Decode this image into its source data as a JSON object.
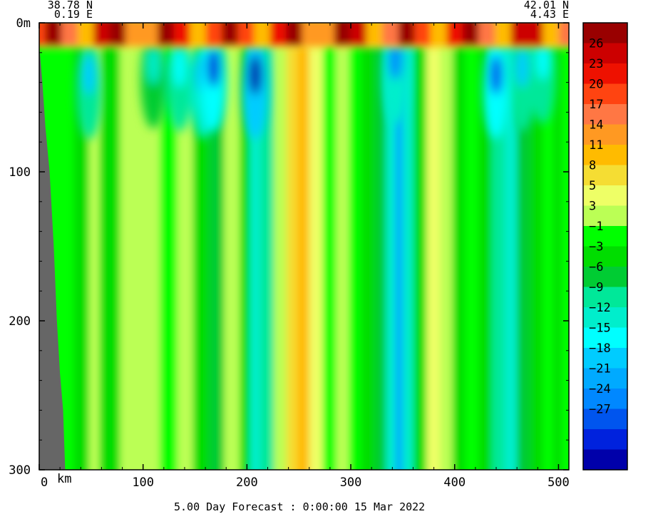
{
  "section": {
    "start": {
      "lat": "38.78 N",
      "lon": "0.19 E"
    },
    "end": {
      "lat": "42.01 N",
      "lon": "4.43 E"
    }
  },
  "footer": "5.00 Day Forecast :  0:00:00  15 Mar 2022",
  "colors": {
    "land": "#666666",
    "scale": [
      "#0000aa",
      "#0022dd",
      "#0055ee",
      "#0088ff",
      "#00aaff",
      "#00ccff",
      "#00ffff",
      "#00eecc",
      "#00e899",
      "#00cc33",
      "#00dd00",
      "#00ff00",
      "#bbff55",
      "#eeff66",
      "#f5dd33",
      "#ffbb00",
      "#ff9922",
      "#ff7744",
      "#ff4411",
      "#ee1100",
      "#cc0000",
      "#990000"
    ]
  },
  "chart_data": {
    "type": "heatmap",
    "title": "",
    "xlabel": "km",
    "ylabel": "m",
    "xlim": [
      0,
      510
    ],
    "ylim": [
      0,
      300
    ],
    "y_inverted": true,
    "x_ticks": [
      {
        "value": 0,
        "label": "0"
      },
      {
        "value": 100,
        "label": "100"
      },
      {
        "value": 200,
        "label": "200"
      },
      {
        "value": 300,
        "label": "300"
      },
      {
        "value": 400,
        "label": "400"
      },
      {
        "value": 500,
        "label": "500"
      }
    ],
    "y_ticks": [
      {
        "value": 0,
        "label": "0m"
      },
      {
        "value": 100,
        "label": "100"
      },
      {
        "value": 200,
        "label": "200"
      },
      {
        "value": 300,
        "label": "300"
      }
    ],
    "colorbar": {
      "labels": [
        "26",
        "23",
        "20",
        "17",
        "14",
        "11",
        "8",
        "5",
        "3",
        "-1",
        "-3",
        "-6",
        "-9",
        "-12",
        "-15",
        "-18",
        "-21",
        "-24",
        "-27"
      ]
    },
    "bands": [
      {
        "x": 0,
        "value": 2
      },
      {
        "x": 20,
        "value": 0
      },
      {
        "x": 35,
        "value": -2
      },
      {
        "x": 50,
        "value": 4
      },
      {
        "x": 60,
        "value": -1
      },
      {
        "x": 80,
        "value": 3
      },
      {
        "x": 100,
        "value": 4
      },
      {
        "x": 118,
        "value": 1
      },
      {
        "x": 135,
        "value": 3
      },
      {
        "x": 150,
        "value": -2
      },
      {
        "x": 165,
        "value": -3
      },
      {
        "x": 180,
        "value": 5
      },
      {
        "x": 195,
        "value": -2
      },
      {
        "x": 205,
        "value": -9
      },
      {
        "x": 215,
        "value": -6
      },
      {
        "x": 228,
        "value": 3
      },
      {
        "x": 240,
        "value": 9
      },
      {
        "x": 250,
        "value": 12
      },
      {
        "x": 262,
        "value": 7
      },
      {
        "x": 275,
        "value": 1
      },
      {
        "x": 288,
        "value": 5
      },
      {
        "x": 300,
        "value": 2
      },
      {
        "x": 312,
        "value": -2
      },
      {
        "x": 325,
        "value": -4
      },
      {
        "x": 336,
        "value": -10
      },
      {
        "x": 345,
        "value": -17
      },
      {
        "x": 352,
        "value": -8
      },
      {
        "x": 362,
        "value": -1
      },
      {
        "x": 375,
        "value": 6
      },
      {
        "x": 388,
        "value": 3
      },
      {
        "x": 400,
        "value": -2
      },
      {
        "x": 412,
        "value": 1
      },
      {
        "x": 425,
        "value": -1
      },
      {
        "x": 438,
        "value": -6
      },
      {
        "x": 450,
        "value": -9
      },
      {
        "x": 462,
        "value": -4
      },
      {
        "x": 475,
        "value": -1
      },
      {
        "x": 487,
        "value": 2
      },
      {
        "x": 497,
        "value": -1
      },
      {
        "x": 505,
        "value": 1
      }
    ],
    "upper_anomalies": [
      {
        "x": 48,
        "depth": 35,
        "value": -15
      },
      {
        "x": 110,
        "depth": 28,
        "value": -9
      },
      {
        "x": 135,
        "depth": 30,
        "value": -12
      },
      {
        "x": 158,
        "depth": 35,
        "value": -18
      },
      {
        "x": 168,
        "depth": 30,
        "value": -24
      },
      {
        "x": 208,
        "depth": 35,
        "value": -27
      },
      {
        "x": 343,
        "depth": 25,
        "value": -18
      },
      {
        "x": 440,
        "depth": 35,
        "value": -21
      },
      {
        "x": 465,
        "depth": 30,
        "value": -15
      },
      {
        "x": 485,
        "depth": 25,
        "value": -12
      }
    ],
    "surface_layer": {
      "depth": [
        0,
        15
      ],
      "value_range": [
        11,
        28
      ]
    }
  }
}
